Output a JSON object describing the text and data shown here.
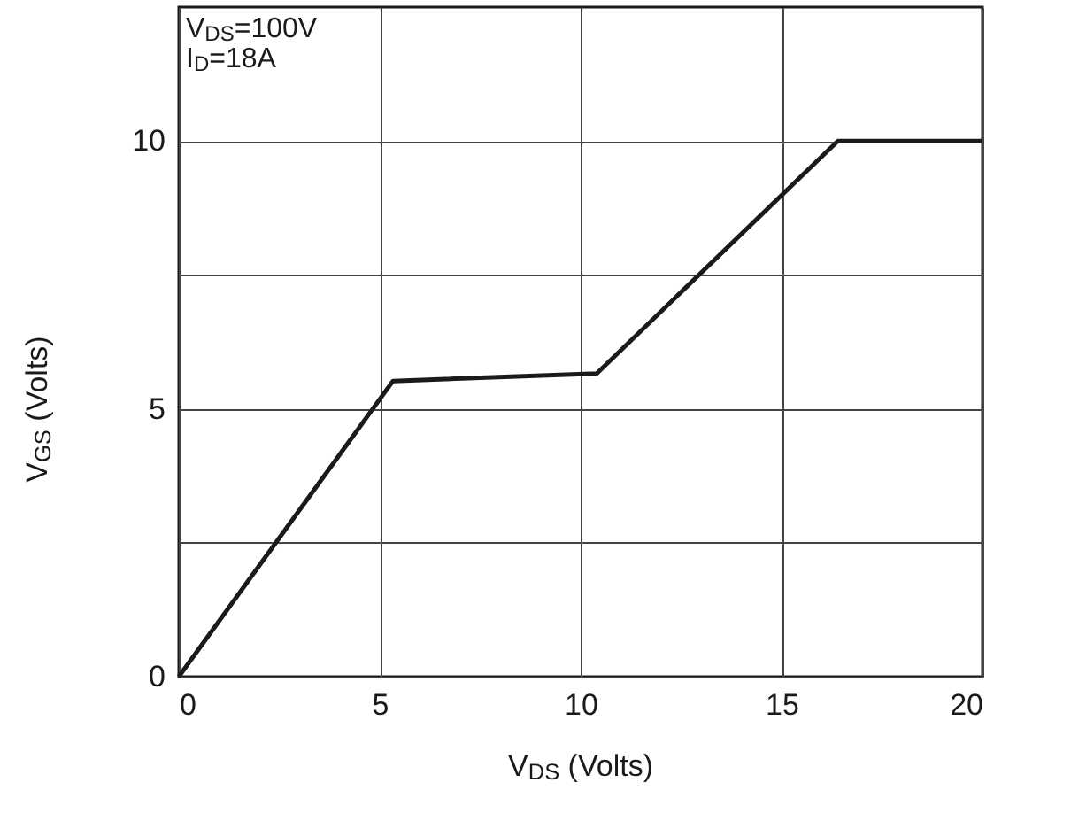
{
  "chart_data": {
    "type": "line",
    "xlabel": "V$_{DS}$ (Volts)",
    "ylabel": "V$_{GS}$ (Volts)",
    "annotations": [
      "V$_{DS}$=100V",
      "I$_{D}$=18A"
    ],
    "x": [
      0,
      5.33,
      10.4,
      16.4,
      20
    ],
    "series": [
      {
        "color": "#1a1a1a",
        "values": [
          0,
          5.52,
          5.66,
          10,
          10
        ]
      }
    ],
    "xlim": [
      0,
      20
    ],
    "xticks": [
      0,
      5,
      10,
      15,
      20
    ],
    "ylim": [
      0,
      12.5
    ],
    "yticks": [
      0,
      {
        "value": 2.5,
        "label": null
      },
      5,
      {
        "value": 7.5,
        "label": null
      },
      10
    ],
    "grid": true,
    "marker": "none",
    "line_style": "solid"
  }
}
